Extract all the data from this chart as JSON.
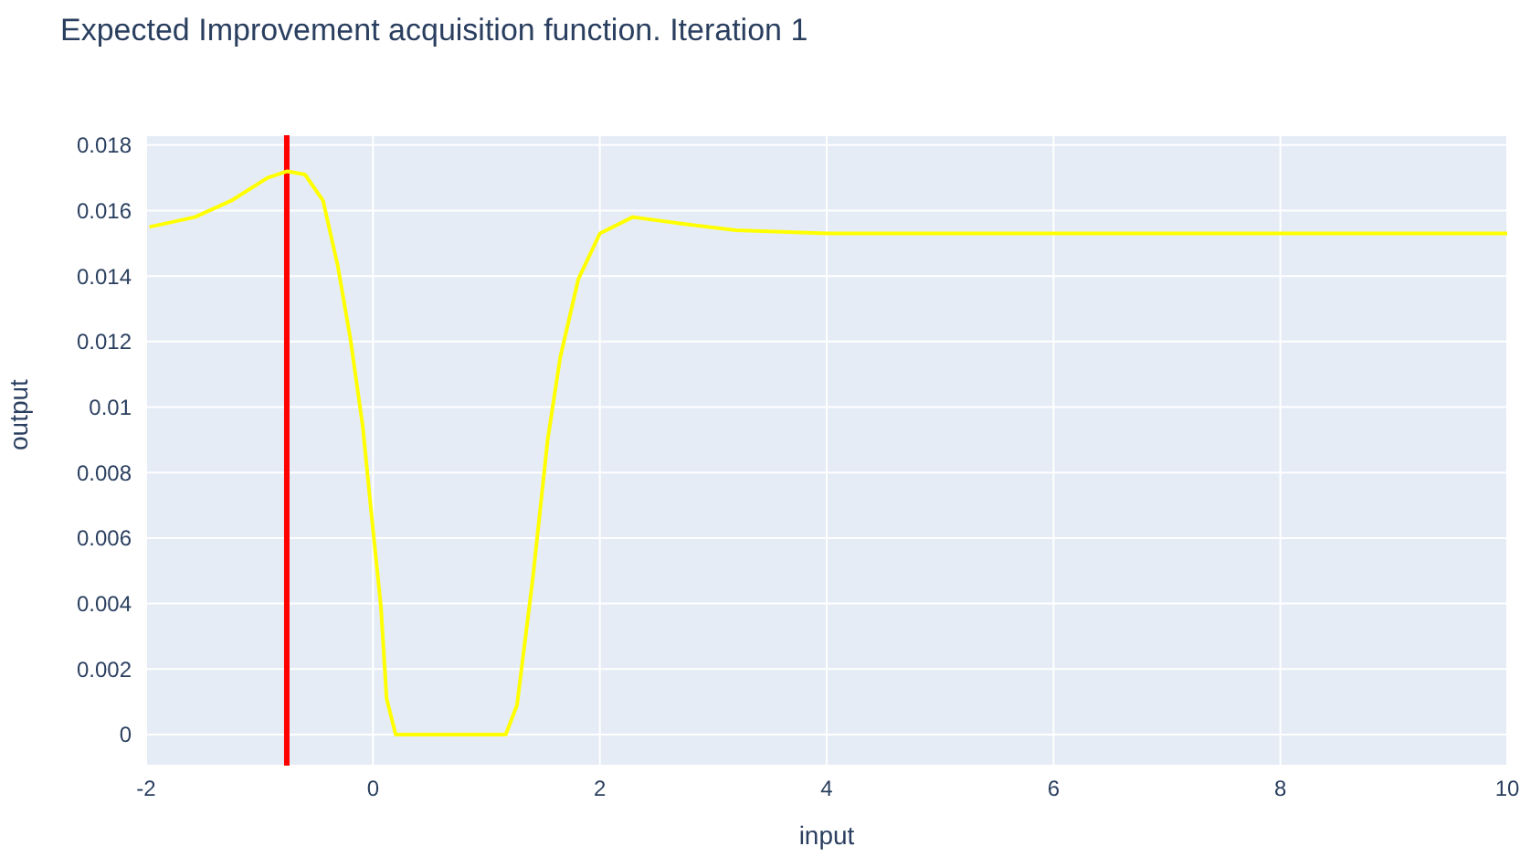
{
  "chart_data": {
    "type": "line",
    "title": "Expected Improvement acquisition function. Iteration 1",
    "xlabel": "input",
    "ylabel": "output",
    "x": [
      -1.97,
      -1.57,
      -1.25,
      -0.93,
      -0.755,
      -0.6,
      -0.44,
      -0.31,
      -0.2,
      -0.09,
      -0.01,
      0.07,
      0.12,
      0.2,
      1.17,
      1.27,
      1.41,
      1.54,
      1.65,
      1.81,
      2.0,
      2.29,
      2.72,
      3.2,
      4.01,
      6,
      8,
      10
    ],
    "series": [
      {
        "color": "#ffff00",
        "values": [
          0.0155,
          0.0158,
          0.0163,
          0.017,
          0.0172,
          0.0171,
          0.0163,
          0.0143,
          0.0121,
          0.0094,
          0.0066,
          0.0039,
          0.0011,
          0,
          0,
          0.0009,
          0.0048,
          0.009,
          0.0115,
          0.0139,
          0.0153,
          0.0158,
          0.0156,
          0.0154,
          0.0153,
          0.0153,
          0.0153,
          0.0153
        ]
      }
    ],
    "xlim": [
      -2,
      10
    ],
    "xticks": [
      -2,
      0,
      2,
      4,
      6,
      8,
      10
    ],
    "ylim": [
      -0.00095,
      0.0183
    ],
    "yticks": [
      0,
      0.002,
      0.004,
      0.006,
      0.008,
      0.01,
      0.012,
      0.014,
      0.016,
      0.018
    ],
    "ref_lines": [
      {
        "axis": "x",
        "value": -0.76,
        "color": "#ff0000"
      }
    ],
    "grid": true,
    "marker": "none",
    "line_style": "solid"
  }
}
